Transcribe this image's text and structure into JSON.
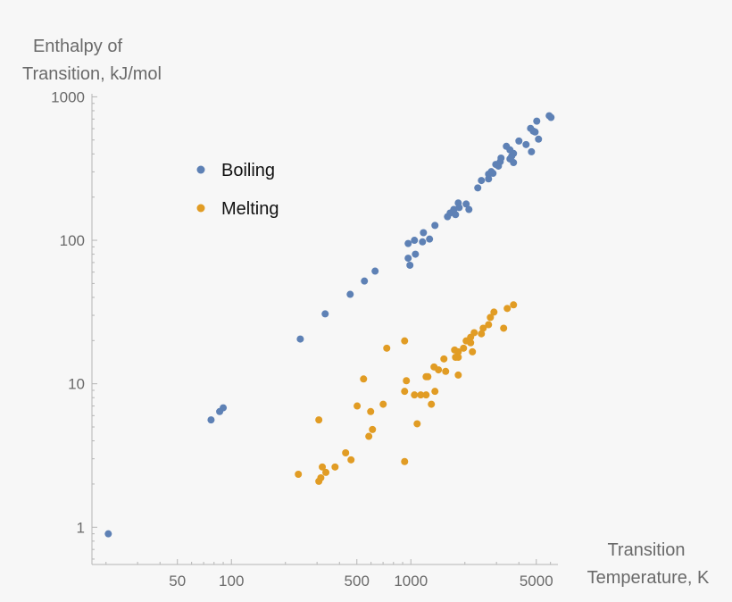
{
  "chart_data": {
    "type": "scatter",
    "xscale": "log",
    "yscale": "log",
    "xlabel": [
      "Transition",
      "Temperature, K"
    ],
    "ylabel": [
      "Enthalpy of",
      "Transition, kJ/mol"
    ],
    "xlim": [
      16.7,
      6600
    ],
    "ylim": [
      0.55,
      1050
    ],
    "xticks": [
      {
        "v": 50,
        "label": "50"
      },
      {
        "v": 100,
        "label": "100"
      },
      {
        "v": 500,
        "label": "500"
      },
      {
        "v": 1000,
        "label": "1000"
      },
      {
        "v": 5000,
        "label": "5000"
      }
    ],
    "yticks": [
      {
        "v": 1,
        "label": "1"
      },
      {
        "v": 10,
        "label": "10"
      },
      {
        "v": 100,
        "label": "100"
      },
      {
        "v": 1000,
        "label": "1000"
      }
    ],
    "grid": false,
    "legend_placement": "top-left",
    "series": [
      {
        "name": "Boiling",
        "color": "#5E81B5",
        "points": [
          [
            20.6,
            0.9
          ],
          [
            77,
            5.6
          ],
          [
            86,
            6.4
          ],
          [
            90,
            6.8
          ],
          [
            242,
            20.5
          ],
          [
            333,
            30.7
          ],
          [
            459,
            42
          ],
          [
            551,
            52
          ],
          [
            632,
            61
          ],
          [
            966,
            95
          ],
          [
            988,
            67
          ],
          [
            966,
            75
          ],
          [
            1060,
            80
          ],
          [
            1047,
            100
          ],
          [
            1161,
            97.5
          ],
          [
            1175,
            113
          ],
          [
            1271,
            102
          ],
          [
            1362,
            127
          ],
          [
            1600,
            146
          ],
          [
            1656,
            155
          ],
          [
            1774,
            151
          ],
          [
            1734,
            164
          ],
          [
            1837,
            182
          ],
          [
            1858,
            169
          ],
          [
            2033,
            179
          ],
          [
            2106,
            164
          ],
          [
            2360,
            232
          ],
          [
            2472,
            261
          ],
          [
            2710,
            268
          ],
          [
            2710,
            289
          ],
          [
            2870,
            293
          ],
          [
            2806,
            301
          ],
          [
            3076,
            329
          ],
          [
            2972,
            338
          ],
          [
            3148,
            353
          ],
          [
            3180,
            374
          ],
          [
            3566,
            369
          ],
          [
            3648,
            386
          ],
          [
            3733,
            348
          ],
          [
            3733,
            403
          ],
          [
            3566,
            427
          ],
          [
            3406,
            452
          ],
          [
            4000,
            492
          ],
          [
            4385,
            465
          ],
          [
            4700,
            414
          ],
          [
            4645,
            603
          ],
          [
            4810,
            577
          ],
          [
            4925,
            569
          ],
          [
            5030,
            677
          ],
          [
            5145,
            507
          ],
          [
            5900,
            738
          ],
          [
            6040,
            718
          ]
        ]
      },
      {
        "name": "Melting",
        "color": "#E19C24",
        "points": [
          [
            2904,
            31.6
          ],
          [
            2774,
            29
          ],
          [
            2710,
            25.8
          ],
          [
            2529,
            24.4
          ],
          [
            2254,
            22.7
          ],
          [
            2472,
            22.3
          ],
          [
            2153,
            21.1
          ],
          [
            2033,
            19.9
          ],
          [
            2153,
            19.3
          ],
          [
            1966,
            17.7
          ],
          [
            1753,
            17.2
          ],
          [
            1837,
            16.7
          ],
          [
            2203,
            16.7
          ],
          [
            1837,
            15.3
          ],
          [
            1774,
            15.3
          ],
          [
            1528,
            14.9
          ],
          [
            1346,
            13.1
          ],
          [
            1425,
            12.5
          ],
          [
            1563,
            12.2
          ],
          [
            1837,
            11.5
          ],
          [
            1216,
            11.2
          ],
          [
            1244,
            11.2
          ],
          [
            944,
            10.5
          ],
          [
            923,
            19.9
          ],
          [
            734,
            17.7
          ],
          [
            923,
            8.85
          ],
          [
            1047,
            8.36
          ],
          [
            1135,
            8.36
          ],
          [
            1216,
            8.36
          ],
          [
            1362,
            8.85
          ],
          [
            1301,
            7.2
          ],
          [
            1084,
            5.26
          ],
          [
            545,
            10.8
          ],
          [
            502,
            7.0
          ],
          [
            597,
            6.4
          ],
          [
            701,
            7.2
          ],
          [
            307,
            5.6
          ],
          [
            611,
            4.8
          ],
          [
            583,
            4.3
          ],
          [
            433,
            3.3
          ],
          [
            464,
            2.95
          ],
          [
            923,
            2.87
          ],
          [
            321,
            2.63
          ],
          [
            378,
            2.63
          ],
          [
            336,
            2.41
          ],
          [
            236,
            2.34
          ],
          [
            315,
            2.21
          ],
          [
            307,
            2.09
          ],
          [
            3444,
            33.5
          ],
          [
            3733,
            35.5
          ],
          [
            3289,
            24.4
          ]
        ]
      }
    ]
  }
}
